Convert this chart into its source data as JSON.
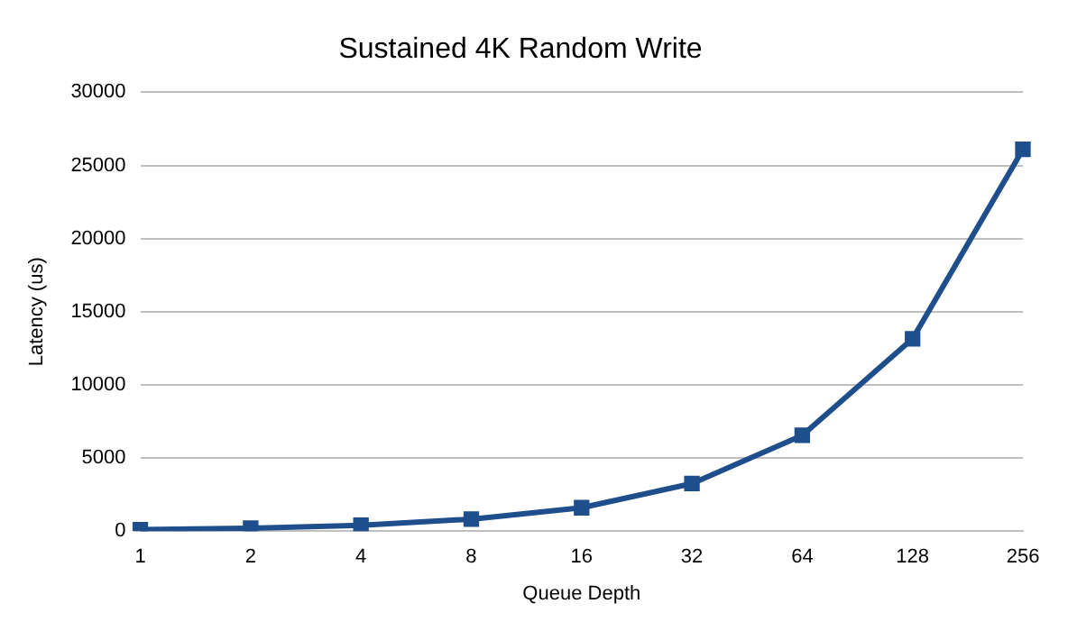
{
  "chart_data": {
    "type": "line",
    "title": "Sustained 4K Random Write",
    "xlabel": "Queue Depth",
    "ylabel": "Latency (us)",
    "categories": [
      "1",
      "2",
      "4",
      "8",
      "16",
      "32",
      "64",
      "128",
      "256"
    ],
    "series": [
      {
        "color": "#1f4e8c",
        "values": [
          100,
          200,
          400,
          820,
          1600,
          3250,
          6550,
          13150,
          26100
        ]
      }
    ],
    "ylim": [
      0,
      30000
    ],
    "yticks": [
      0,
      5000,
      10000,
      15000,
      20000,
      25000,
      30000
    ],
    "grid": "y",
    "legend": false,
    "marker": "square",
    "line_style": "solid"
  }
}
